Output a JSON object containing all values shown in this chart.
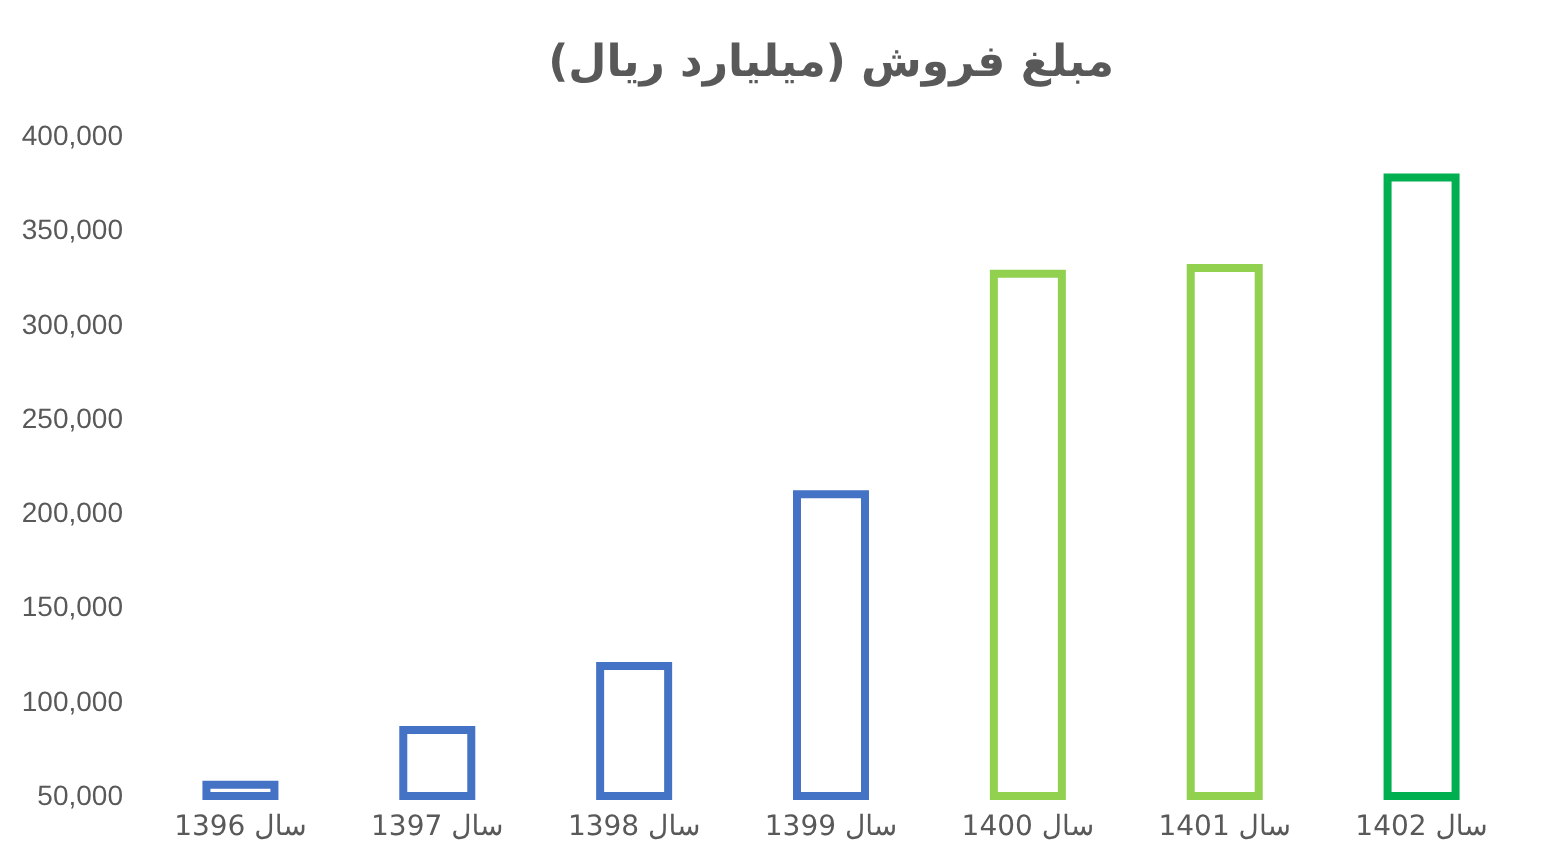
{
  "chart_data": {
    "type": "bar",
    "title": "مبلغ فروش (میلیارد ریال)",
    "categories": [
      "سال 1396",
      "سال 1397",
      "سال 1398",
      "سال 1399",
      "سال 1400",
      "سال 1401",
      "سال 1402"
    ],
    "values": [
      56000,
      85000,
      119000,
      210000,
      327000,
      330000,
      378000
    ],
    "colors": [
      "#4472c4",
      "#4472c4",
      "#4472c4",
      "#4472c4",
      "#92d050",
      "#92d050",
      "#00b050"
    ],
    "ylim": [
      50000,
      400000
    ],
    "yticks": [
      {
        "value": 50000,
        "label": "50,000"
      },
      {
        "value": 100000,
        "label": "100,000"
      },
      {
        "value": 150000,
        "label": "150,000"
      },
      {
        "value": 200000,
        "label": "200,000"
      },
      {
        "value": 250000,
        "label": "250,000"
      },
      {
        "value": 300000,
        "label": "300,000"
      },
      {
        "value": 350000,
        "label": "350,000"
      },
      {
        "value": 400000,
        "label": "400,000"
      }
    ],
    "grid": false,
    "legend": false
  }
}
